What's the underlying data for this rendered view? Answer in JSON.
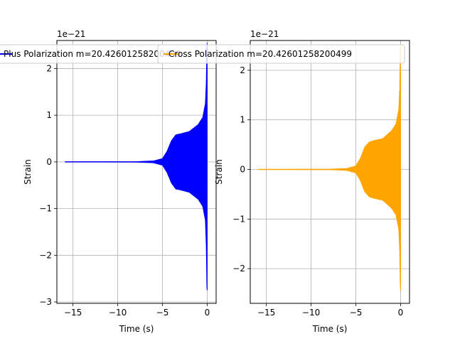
{
  "chart_data": [
    {
      "type": "line",
      "title": "",
      "xlabel": "Time (s)",
      "ylabel": "Strain",
      "y_offset_label": "1e−21",
      "xlim": [
        -16.8,
        1.0
      ],
      "ylim": [
        -3.03,
        2.6
      ],
      "xticks": [
        -15,
        -10,
        -5,
        0
      ],
      "yticks": [
        -3,
        -2,
        -1,
        0,
        1,
        2
      ],
      "grid": true,
      "legend": "top-left",
      "series": [
        {
          "name": "Plus Polarization m=20.42601258200499",
          "color": "#0000ff",
          "t_start": -15.9,
          "t_end": 0.0,
          "envelope": {
            "t": [
              -15.9,
              -8,
              -6,
              -5,
              -4.5,
              -4,
              -3.5,
              -3,
              -2,
              -1,
              -0.5,
              -0.2,
              -0.1,
              -0.03,
              0.0
            ],
            "upper": [
              0.0,
              0.003,
              0.02,
              0.07,
              0.22,
              0.45,
              0.58,
              0.6,
              0.65,
              0.8,
              0.95,
              1.25,
              1.7,
              2.4,
              2.55
            ],
            "lower": [
              0.0,
              -0.003,
              -0.02,
              -0.07,
              -0.22,
              -0.45,
              -0.58,
              -0.6,
              -0.65,
              -0.8,
              -0.95,
              -1.25,
              -1.8,
              -2.7,
              -2.75
            ]
          }
        }
      ]
    },
    {
      "type": "line",
      "title": "",
      "xlabel": "Time (s)",
      "ylabel": "Strain",
      "y_offset_label": "1e−21",
      "xlim": [
        -16.8,
        1.0
      ],
      "ylim": [
        -2.7,
        2.6
      ],
      "xticks": [
        -15,
        -10,
        -5,
        0
      ],
      "yticks": [
        -2,
        -1,
        0,
        1,
        2
      ],
      "grid": true,
      "legend": "top-left",
      "series": [
        {
          "name": "Cross Polarization m=20.42601258200499",
          "color": "#ffa500",
          "t_start": -15.9,
          "t_end": 0.0,
          "envelope": {
            "t": [
              -15.9,
              -8,
              -6,
              -5,
              -4.5,
              -4,
              -3.5,
              -3,
              -2,
              -1,
              -0.5,
              -0.2,
              -0.1,
              -0.03,
              0.0
            ],
            "upper": [
              0.0,
              0.003,
              0.02,
              0.07,
              0.22,
              0.45,
              0.55,
              0.58,
              0.62,
              0.78,
              0.92,
              1.2,
              1.6,
              2.3,
              2.5
            ],
            "lower": [
              0.0,
              -0.003,
              -0.02,
              -0.07,
              -0.22,
              -0.45,
              -0.55,
              -0.58,
              -0.62,
              -0.78,
              -0.92,
              -1.2,
              -1.6,
              -2.3,
              -2.45
            ]
          }
        }
      ]
    }
  ]
}
